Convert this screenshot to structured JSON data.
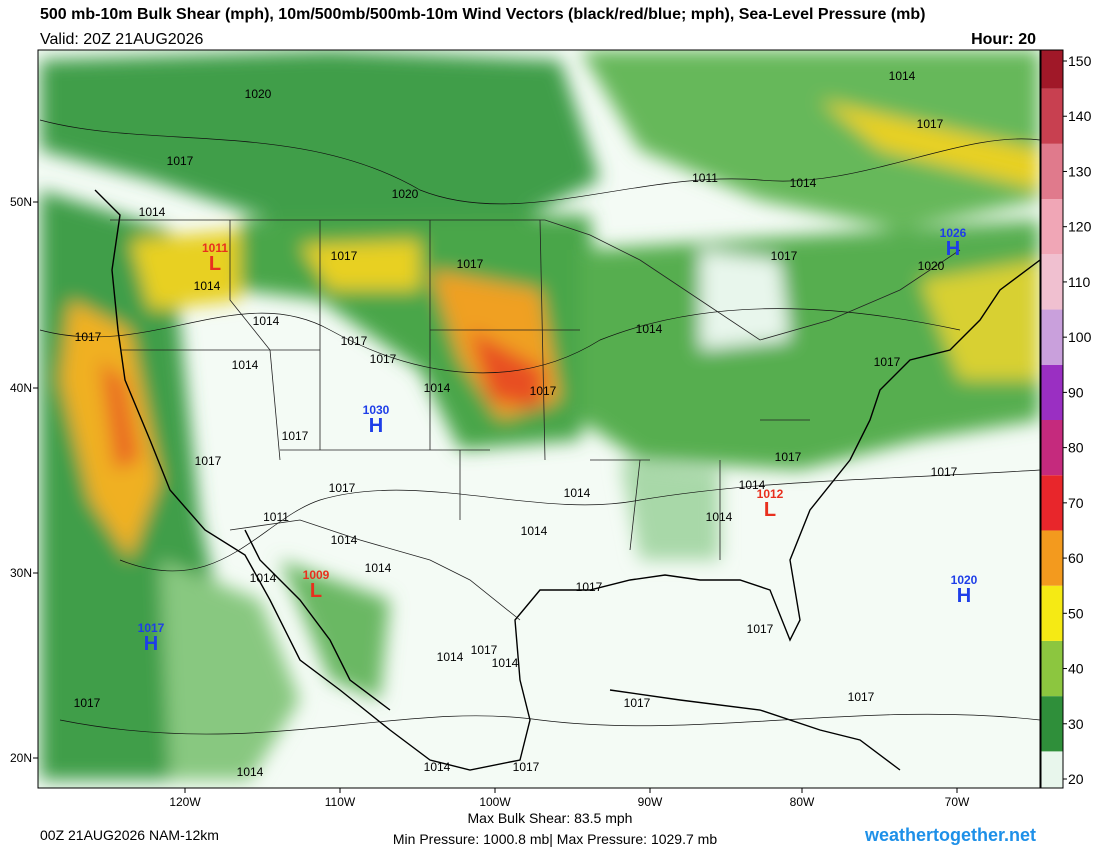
{
  "header": {
    "title": "500 mb-10m Bulk Shear (mph), 10m/500mb/500mb-10m Wind Vectors (black/red/blue; mph), Sea-Level Pressure (mb)",
    "valid": "Valid: 20Z 21AUG2026",
    "hour": "Hour: 20"
  },
  "colorbar": {
    "ticks": [
      20,
      30,
      40,
      50,
      60,
      70,
      80,
      90,
      100,
      110,
      120,
      130,
      140,
      150
    ],
    "colors": [
      "#e8f6ec",
      "#2f8f3a",
      "#8cc63f",
      "#f5ea14",
      "#f39a1e",
      "#e8262b",
      "#c52a7d",
      "#9a2fc2",
      "#c9a0dc",
      "#f0c0d0",
      "#f0a6b6",
      "#e07a8c",
      "#c84050",
      "#a01828"
    ]
  },
  "map": {
    "latitudes": [
      "50N",
      "40N",
      "30N",
      "20N"
    ],
    "longitudes": [
      "120W",
      "110W",
      "100W",
      "90W",
      "80W",
      "70W"
    ],
    "isobar_labels": [
      "1020",
      "1014",
      "1017",
      "1017",
      "1011",
      "1014",
      "1020",
      "1014",
      "1017",
      "1017",
      "1017",
      "1020",
      "1014",
      "1014",
      "1014",
      "1017",
      "1017",
      "1017",
      "1014",
      "1014",
      "1017",
      "1017",
      "1017",
      "1017",
      "1017",
      "1017",
      "1017",
      "1014",
      "1014",
      "1011",
      "1014",
      "1014",
      "1014",
      "1014",
      "1014",
      "1017",
      "1017",
      "1014",
      "1017",
      "1014",
      "1017",
      "1017",
      "1017",
      "1014",
      "1014",
      "1017"
    ],
    "centers": [
      {
        "letter": "L",
        "pressure": "1011"
      },
      {
        "letter": "H",
        "pressure": "1030"
      },
      {
        "letter": "H",
        "pressure": "1026"
      },
      {
        "letter": "L",
        "pressure": "1012"
      },
      {
        "letter": "L",
        "pressure": "1009"
      },
      {
        "letter": "H",
        "pressure": "1017"
      },
      {
        "letter": "H",
        "pressure": "1020"
      }
    ]
  },
  "footer": {
    "run": "00Z 21AUG2026 NAM-12km",
    "max_shear": "Max Bulk Shear:  83.5 mph",
    "pressure_range": "Min Pressure: 1000.8 mb| Max Pressure: 1029.7 mb",
    "site": "weathertogether.net"
  }
}
